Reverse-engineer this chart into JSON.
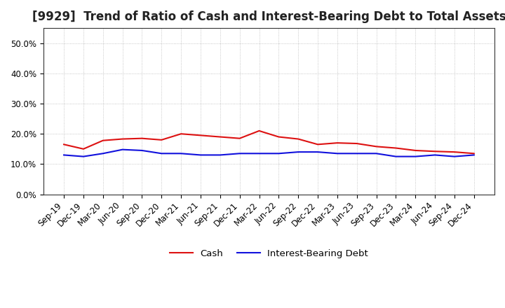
{
  "title": "[9929]  Trend of Ratio of Cash and Interest-Bearing Debt to Total Assets",
  "labels": [
    "Sep-19",
    "Dec-19",
    "Mar-20",
    "Jun-20",
    "Sep-20",
    "Dec-20",
    "Mar-21",
    "Jun-21",
    "Sep-21",
    "Dec-21",
    "Mar-22",
    "Jun-22",
    "Sep-22",
    "Dec-22",
    "Mar-23",
    "Jun-23",
    "Sep-23",
    "Dec-23",
    "Mar-24",
    "Jun-24",
    "Sep-24",
    "Dec-24"
  ],
  "cash": [
    16.5,
    15.0,
    17.8,
    18.3,
    18.5,
    18.0,
    20.0,
    19.5,
    19.0,
    18.5,
    21.0,
    19.0,
    18.3,
    16.5,
    17.0,
    16.8,
    15.8,
    15.3,
    14.5,
    14.2,
    14.0,
    13.5
  ],
  "debt": [
    13.0,
    12.5,
    13.5,
    14.8,
    14.5,
    13.5,
    13.5,
    13.0,
    13.0,
    13.5,
    13.5,
    13.5,
    14.0,
    14.0,
    13.5,
    13.5,
    13.5,
    12.5,
    12.5,
    13.0,
    12.5,
    13.0
  ],
  "cash_color": "#dd1111",
  "debt_color": "#1111dd",
  "bg_color": "#ffffff",
  "plot_bg_color": "#ffffff",
  "grid_color": "#999999",
  "ylim": [
    0,
    55
  ],
  "yticks": [
    0,
    10,
    20,
    30,
    40,
    50
  ],
  "ytick_labels": [
    "0.0%",
    "10.0%",
    "20.0%",
    "30.0%",
    "40.0%",
    "50.0%"
  ],
  "legend_cash": "Cash",
  "legend_debt": "Interest-Bearing Debt",
  "line_width": 1.5,
  "title_fontsize": 12,
  "tick_fontsize": 8.5
}
